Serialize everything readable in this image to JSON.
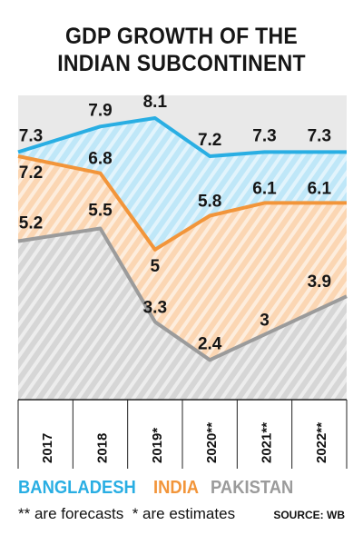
{
  "title_line1": "GDP GROWTH OF THE",
  "title_line2": "INDIAN SUBCONTINENT",
  "legend": [
    {
      "label": "BANGLADESH",
      "color": "#29aee3"
    },
    {
      "label": "INDIA",
      "color": "#f2953a"
    },
    {
      "label": "PAKISTAN",
      "color": "#9b9b9b"
    }
  ],
  "note_forecast": "** are forecasts",
  "note_estimate": "* are estimates",
  "source": "SOURCE: WB",
  "chart_data": {
    "type": "area",
    "categories": [
      "2017",
      "2018",
      "2019*",
      "2020**",
      "2021**",
      "2022**"
    ],
    "series": [
      {
        "name": "BANGLADESH",
        "values": [
          7.3,
          7.9,
          8.1,
          7.2,
          7.3,
          7.3
        ],
        "labels": [
          "7.3",
          "7.9",
          "8.1",
          "7.2",
          "7.3",
          "7.3"
        ],
        "color": "#29aee3",
        "fill": "#bfe7f8"
      },
      {
        "name": "INDIA",
        "values": [
          7.2,
          6.8,
          5,
          5.8,
          6.1,
          6.1
        ],
        "labels": [
          "7.2",
          "6.8",
          "5",
          "5.8",
          "6.1",
          "6.1"
        ],
        "color": "#f2953a",
        "fill": "#fbd6b3"
      },
      {
        "name": "PAKISTAN",
        "values": [
          5.2,
          5.5,
          3.3,
          2.4,
          3,
          3.9
        ],
        "labels": [
          "5.2",
          "5.5",
          "3.3",
          "2.4",
          "3",
          "3.9"
        ],
        "color": "#9b9b9b",
        "fill": "#d6d6d6"
      }
    ],
    "ylim": [
      2,
      8.1
    ],
    "legend_position": "bottom"
  }
}
